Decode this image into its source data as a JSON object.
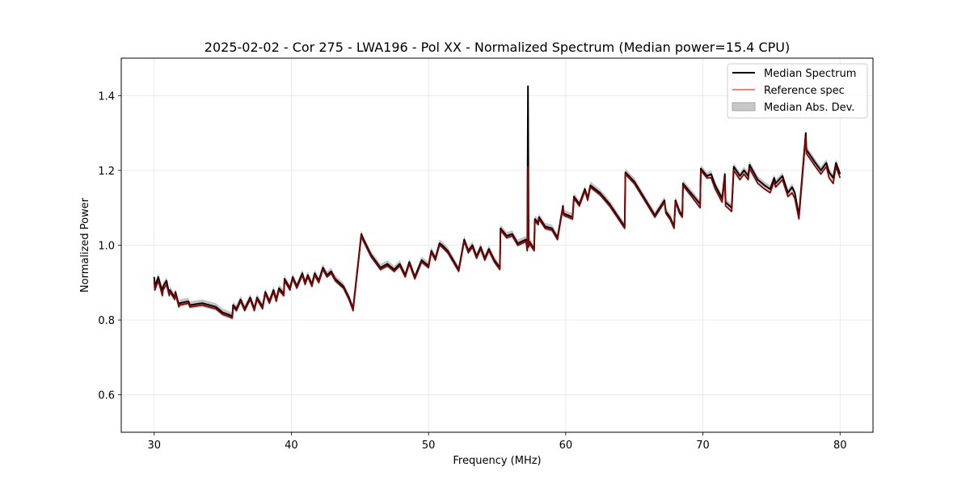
{
  "chart_data": {
    "type": "line",
    "title": "2025-02-02 - Cor 275 - LWA196 - Pol XX - Normalized Spectrum (Median power=15.4 CPU)",
    "xlabel": "Frequency (MHz)",
    "ylabel": "Normalized Power",
    "xlim": [
      27.6,
      82.4
    ],
    "ylim": [
      0.5,
      1.5
    ],
    "xticks": [
      30,
      40,
      50,
      60,
      70,
      80
    ],
    "yticks": [
      0.6,
      0.8,
      1.0,
      1.2,
      1.4
    ],
    "xtick_labels": [
      "30",
      "40",
      "50",
      "60",
      "70",
      "80"
    ],
    "ytick_labels": [
      "0.6",
      "0.8",
      "1.0",
      "1.2",
      "1.4"
    ],
    "grid": true,
    "legend_position": "top-right",
    "legend": [
      "Median Spectrum",
      "Reference spec",
      "Median Abs. Dev."
    ],
    "colors": {
      "median": "#000000",
      "reference": "#ff5555",
      "mad_band": "#b0b0b0",
      "overlap": "#8b0000",
      "grid": "#e6e6e6"
    },
    "mad_half_width": 0.01,
    "series": [
      {
        "name": "Median Spectrum",
        "x": [
          30.0,
          30.05,
          30.3,
          30.6,
          30.65,
          30.9,
          31.1,
          31.15,
          31.5,
          31.55,
          31.8,
          31.85,
          32.5,
          32.6,
          33.5,
          34.5,
          35.0,
          35.4,
          35.7,
          35.75,
          36.0,
          36.3,
          36.6,
          37.0,
          37.3,
          37.5,
          37.9,
          38.1,
          38.4,
          38.7,
          38.9,
          39.1,
          39.45,
          39.5,
          39.9,
          40.1,
          40.4,
          40.8,
          41.0,
          41.2,
          41.5,
          41.7,
          42.0,
          42.3,
          42.6,
          42.9,
          43.2,
          43.8,
          44.2,
          44.5,
          45.1,
          45.2,
          45.8,
          46.5,
          47.0,
          47.5,
          47.9,
          48.3,
          48.6,
          49.0,
          49.5,
          50.0,
          50.2,
          50.5,
          50.8,
          51.0,
          51.4,
          51.8,
          52.2,
          52.6,
          52.9,
          53.2,
          53.5,
          53.8,
          54.1,
          54.4,
          54.8,
          55.2,
          55.25,
          55.7,
          56.1,
          56.5,
          57.1,
          57.2,
          57.25,
          57.3,
          57.35,
          57.7,
          57.75,
          58.0,
          58.05,
          58.5,
          59.0,
          59.4,
          59.8,
          59.85,
          60.5,
          60.6,
          61.0,
          61.4,
          61.6,
          61.8,
          62.5,
          63.2,
          64.3,
          64.35,
          65.0,
          66.0,
          66.5,
          67.2,
          67.3,
          67.6,
          67.9,
          68.0,
          68.3,
          68.5,
          68.55,
          69.8,
          69.85,
          70.3,
          70.6,
          70.9,
          71.4,
          71.6,
          71.65,
          72.1,
          72.25,
          72.7,
          73.0,
          73.3,
          73.4,
          74.0,
          74.5,
          74.9,
          75.2,
          75.3,
          75.8,
          76.2,
          76.5,
          76.7,
          77.0,
          77.5,
          77.55,
          78.2,
          78.6,
          79.0,
          79.2,
          79.5,
          79.7,
          80.0
        ],
        "values": [
          0.915,
          0.89,
          0.915,
          0.875,
          0.89,
          0.905,
          0.87,
          0.88,
          0.86,
          0.875,
          0.84,
          0.845,
          0.85,
          0.84,
          0.845,
          0.835,
          0.82,
          0.815,
          0.81,
          0.84,
          0.83,
          0.855,
          0.83,
          0.86,
          0.83,
          0.86,
          0.835,
          0.875,
          0.85,
          0.88,
          0.855,
          0.885,
          0.87,
          0.91,
          0.885,
          0.915,
          0.89,
          0.925,
          0.9,
          0.92,
          0.895,
          0.925,
          0.905,
          0.94,
          0.92,
          0.93,
          0.91,
          0.89,
          0.86,
          0.83,
          1.03,
          1.02,
          0.975,
          0.94,
          0.95,
          0.935,
          0.95,
          0.92,
          0.955,
          0.915,
          0.96,
          0.945,
          0.985,
          0.965,
          1.005,
          1.0,
          0.985,
          0.96,
          0.935,
          1.015,
          0.985,
          1.0,
          0.97,
          0.995,
          0.965,
          0.99,
          0.96,
          0.94,
          1.045,
          1.025,
          1.03,
          1.005,
          1.015,
          0.99,
          1.425,
          1.0,
          1.01,
          0.99,
          1.07,
          1.06,
          1.075,
          1.05,
          1.045,
          1.02,
          1.105,
          1.085,
          1.075,
          1.13,
          1.11,
          1.15,
          1.125,
          1.16,
          1.14,
          1.11,
          1.05,
          1.195,
          1.17,
          1.11,
          1.08,
          1.12,
          1.09,
          1.075,
          1.05,
          1.12,
          1.09,
          1.08,
          1.165,
          1.11,
          1.205,
          1.185,
          1.19,
          1.16,
          1.125,
          1.19,
          1.115,
          1.1,
          1.21,
          1.185,
          1.2,
          1.185,
          1.215,
          1.175,
          1.16,
          1.15,
          1.18,
          1.165,
          1.185,
          1.14,
          1.155,
          1.14,
          1.08,
          1.3,
          1.255,
          1.22,
          1.2,
          1.22,
          1.195,
          1.18,
          1.22,
          1.19
        ]
      },
      {
        "name": "Reference spec",
        "x": [
          30.0,
          30.05,
          30.3,
          30.6,
          30.65,
          30.9,
          31.1,
          31.15,
          31.5,
          31.55,
          31.8,
          31.85,
          32.5,
          32.6,
          33.5,
          34.5,
          35.0,
          35.4,
          35.7,
          35.75,
          36.0,
          36.3,
          36.6,
          37.0,
          37.3,
          37.5,
          37.9,
          38.1,
          38.4,
          38.7,
          38.9,
          39.1,
          39.45,
          39.5,
          39.9,
          40.1,
          40.4,
          40.8,
          41.0,
          41.2,
          41.5,
          41.7,
          42.0,
          42.3,
          42.6,
          42.9,
          43.2,
          43.8,
          44.2,
          44.5,
          45.1,
          45.2,
          45.8,
          46.5,
          47.0,
          47.5,
          47.9,
          48.3,
          48.6,
          49.0,
          49.5,
          50.0,
          50.2,
          50.5,
          50.8,
          51.0,
          51.4,
          51.8,
          52.2,
          52.6,
          52.9,
          53.2,
          53.5,
          53.8,
          54.1,
          54.4,
          54.8,
          55.2,
          55.25,
          55.7,
          56.1,
          56.5,
          57.1,
          57.2,
          57.25,
          57.3,
          57.35,
          57.7,
          57.75,
          58.0,
          58.05,
          58.5,
          59.0,
          59.4,
          59.8,
          59.85,
          60.5,
          60.6,
          61.0,
          61.4,
          61.6,
          61.8,
          62.5,
          63.2,
          64.3,
          64.35,
          65.0,
          66.0,
          66.5,
          67.2,
          67.3,
          67.6,
          67.9,
          68.0,
          68.3,
          68.5,
          68.55,
          69.8,
          69.85,
          70.3,
          70.6,
          70.9,
          71.4,
          71.6,
          71.65,
          72.1,
          72.25,
          72.7,
          73.0,
          73.3,
          73.4,
          74.0,
          74.5,
          74.9,
          75.2,
          75.3,
          75.8,
          76.2,
          76.5,
          76.7,
          77.0,
          77.5,
          77.55,
          78.2,
          78.6,
          79.0,
          79.2,
          79.5,
          79.7,
          80.0
        ],
        "values": [
          0.905,
          0.88,
          0.905,
          0.865,
          0.88,
          0.895,
          0.865,
          0.875,
          0.855,
          0.87,
          0.835,
          0.84,
          0.845,
          0.835,
          0.84,
          0.83,
          0.815,
          0.81,
          0.805,
          0.835,
          0.825,
          0.85,
          0.825,
          0.855,
          0.825,
          0.855,
          0.83,
          0.87,
          0.845,
          0.875,
          0.85,
          0.88,
          0.865,
          0.905,
          0.88,
          0.91,
          0.885,
          0.92,
          0.895,
          0.915,
          0.89,
          0.92,
          0.9,
          0.935,
          0.915,
          0.925,
          0.905,
          0.885,
          0.855,
          0.825,
          1.025,
          1.015,
          0.97,
          0.935,
          0.945,
          0.93,
          0.945,
          0.915,
          0.95,
          0.91,
          0.955,
          0.94,
          0.98,
          0.96,
          1.0,
          0.995,
          0.98,
          0.955,
          0.93,
          1.01,
          0.98,
          0.995,
          0.965,
          0.99,
          0.96,
          0.985,
          0.955,
          0.935,
          1.04,
          1.02,
          1.025,
          1.0,
          1.01,
          0.985,
          1.21,
          0.995,
          1.005,
          0.985,
          1.065,
          1.055,
          1.07,
          1.045,
          1.04,
          1.015,
          1.1,
          1.08,
          1.07,
          1.125,
          1.105,
          1.145,
          1.12,
          1.155,
          1.135,
          1.105,
          1.045,
          1.19,
          1.165,
          1.105,
          1.075,
          1.115,
          1.085,
          1.07,
          1.045,
          1.115,
          1.085,
          1.075,
          1.16,
          1.1,
          1.2,
          1.18,
          1.18,
          1.15,
          1.115,
          1.18,
          1.105,
          1.09,
          1.2,
          1.175,
          1.19,
          1.175,
          1.205,
          1.165,
          1.15,
          1.14,
          1.17,
          1.155,
          1.175,
          1.13,
          1.14,
          1.125,
          1.07,
          1.29,
          1.245,
          1.21,
          1.19,
          1.21,
          1.18,
          1.165,
          1.21,
          1.18
        ]
      }
    ]
  }
}
